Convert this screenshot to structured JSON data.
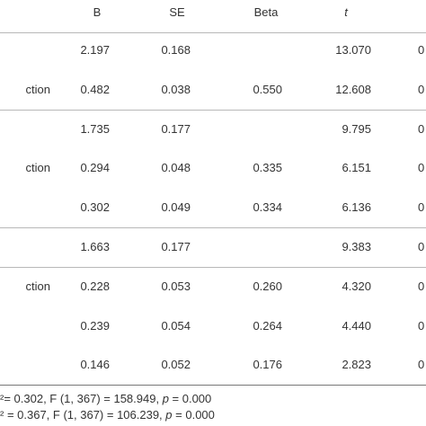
{
  "table": {
    "header": [
      null,
      "B",
      "SE",
      "Beta",
      "t",
      null
    ],
    "rows": [
      [
        null,
        "2.197",
        "0.168",
        null,
        "13.070",
        "0"
      ],
      [
        "ction",
        "0.482",
        "0.038",
        "0.550",
        "12.608",
        "0"
      ],
      [
        null,
        "1.735",
        "0.177",
        null,
        "9.795",
        "0"
      ],
      [
        "ction",
        "0.294",
        "0.048",
        "0.335",
        "6.151",
        "0"
      ],
      [
        null,
        "0.302",
        "0.049",
        "0.334",
        "6.136",
        "0"
      ],
      [
        null,
        "1.663",
        "0.177",
        null,
        "9.383",
        "0"
      ],
      [
        "ction",
        "0.228",
        "0.053",
        "0.260",
        "4.320",
        "0"
      ],
      [
        null,
        "0.239",
        "0.054",
        "0.264",
        "4.440",
        "0"
      ],
      [
        null,
        "0.146",
        "0.052",
        "0.176",
        "2.823",
        "0"
      ]
    ]
  },
  "footnotes": [
    [
      "²= 0.302, F (1, 367) = 158.949, ",
      "p",
      " = 0.000"
    ],
    [
      "² = 0.367, F (1, 367) = 106.239, ",
      "p",
      " = 0.000"
    ]
  ]
}
